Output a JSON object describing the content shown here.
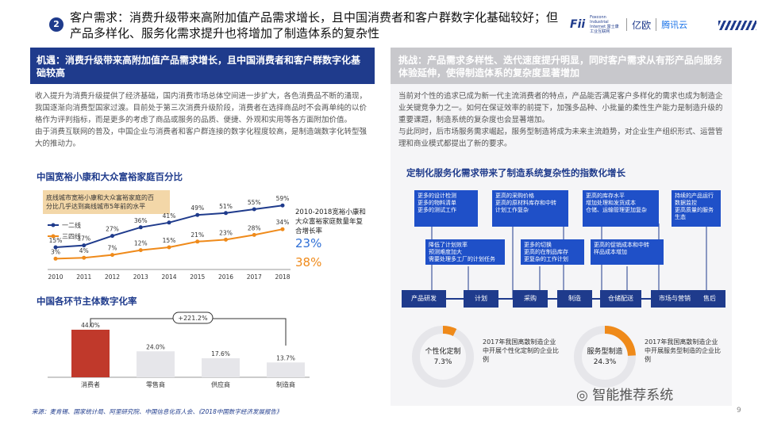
{
  "header": {
    "number": "2",
    "title": "客户需求：消费升级带来高附加值产品需求增长，且中国消费者和客户群数字化基础较好；但产品多样化、服务化需求提升也将增加了制造体系的复杂性",
    "logo_fi": "Fii",
    "logo_fi_sub": "Foxconn Industrial Internet 富士康工业互联网",
    "logo_yiou": "亿欧",
    "logo_tencent": "腾讯云"
  },
  "left": {
    "heading": "机遇：消费升级带来高附加值产品需求增长，且中国消费者和客户群数字化基础较高",
    "paragraph1": "收入提升为消费升级提供了经济基础，国内消费市场总体空间进一步扩大，各色消费品不断的涌现，我国逐渐向消费型国家过渡。目前处于第三次消费升级阶段，消费者在选择商品时不会再单纯的以价格作为评判指标，而是更多的考虑了商品或服务的品质、便捷、外观和实用等各方面附加价值。",
    "paragraph2": "由于消费互联网的普及，中国企业与消费者和客户群连接的数字化程度较高，是制造端数字化转型强大的推动力。",
    "chart1_title": "中国宽裕小康和大众富裕家庭百分比",
    "chart2_title": "中国各环节主体数字化率",
    "growth_label": "2010-2018宽裕小康和大众富裕家庭数量年复合增长率",
    "growth1": "23%",
    "growth2": "38%"
  },
  "right": {
    "heading": "挑战：产品需求多样性、迭代速度提升明显，同时客户需求从有形产品向服务体验延伸，使得制造体系的复杂度显著增加",
    "paragraph1": "当前对个性的追求已成为新一代主流消费者的特点，产品能否满足客户多样化的需求也成为制造企业关键竞争力之一。如何在保证效率的前提下，加强多品种、小批量的柔性生产能力是制造升级的重要课题，制造系统的复杂度也会显著增加。",
    "paragraph2": "与此同时，后市场服务需求崛起，服务型制造将成为未来主流趋势，对企业生产组织形式、运营管理和商业模式都提出了新的要求。",
    "flow_title": "定制化服务化需求带来了制造系统复杂性的指数化增长",
    "top_boxes": [
      "更多的设计检测\n更多的物料清单\n更多的测试工作",
      "更高的采购价格\n更高的原材料库存和中转\n计划工作复杂",
      "更高的库存水平\n增加处理和发货成本\n仓储、运输管理更加复杂",
      "持续的产品运行\n数据监控\n更高质量的服务\n生态"
    ],
    "mid_boxes": [
      "降低了计划效率\n预测难度加大\n需要处理多工厂的计划任务",
      "更多的切换\n更高的在制品库存\n更复杂的工作计划",
      "更高的促销成本和中转\n样品成本增加"
    ],
    "steps": [
      "产品研发",
      "计划",
      "采购",
      "制造",
      "仓储配送",
      "市场与营销",
      "售后"
    ],
    "donut1": {
      "label": "个性化定制",
      "value": "7.3%",
      "desc": "2017年我国离散制造企业中开展个性化定制的企业比例"
    },
    "donut2": {
      "label": "服务型制造",
      "value": "24.3%",
      "desc": "2017年我国离散制造企业中开展服务型制造的企业比例"
    }
  },
  "footer": {
    "source": "来源：麦肯锡、国家统计局、阿里研究院、中国信息化百人会、《2018中国数字经济发展报告》",
    "wechat": "智能推荐系统",
    "page": "9"
  },
  "colors": {
    "navy": "#1f3b8c",
    "blue": "#2f6fd6",
    "orange": "#ef8a1a",
    "red": "#c0392b",
    "gray": "#c8c8cc"
  },
  "chart_data": [
    {
      "type": "line",
      "annotation": "底线城市宽裕小康和大众富裕家庭的百分比几乎达到高线城市5年前的水平",
      "x": [
        "2010",
        "2011",
        "2012",
        "2013",
        "2014",
        "2015",
        "2016",
        "2017",
        "2018"
      ],
      "series": [
        {
          "name": "一二线",
          "values": [
            15,
            17,
            27,
            36,
            41,
            49,
            51,
            55,
            59
          ]
        },
        {
          "name": "三四线",
          "values": [
            3,
            4,
            7,
            12,
            15,
            21,
            23,
            28,
            34
          ]
        }
      ],
      "value_suffix": "%"
    },
    {
      "type": "bar",
      "categories": [
        "消费者",
        "零售商",
        "供应商",
        "制造商"
      ],
      "values": [
        44.0,
        24.0,
        17.6,
        13.7
      ],
      "value_suffix": "%",
      "annotation": "+221.2%"
    }
  ]
}
